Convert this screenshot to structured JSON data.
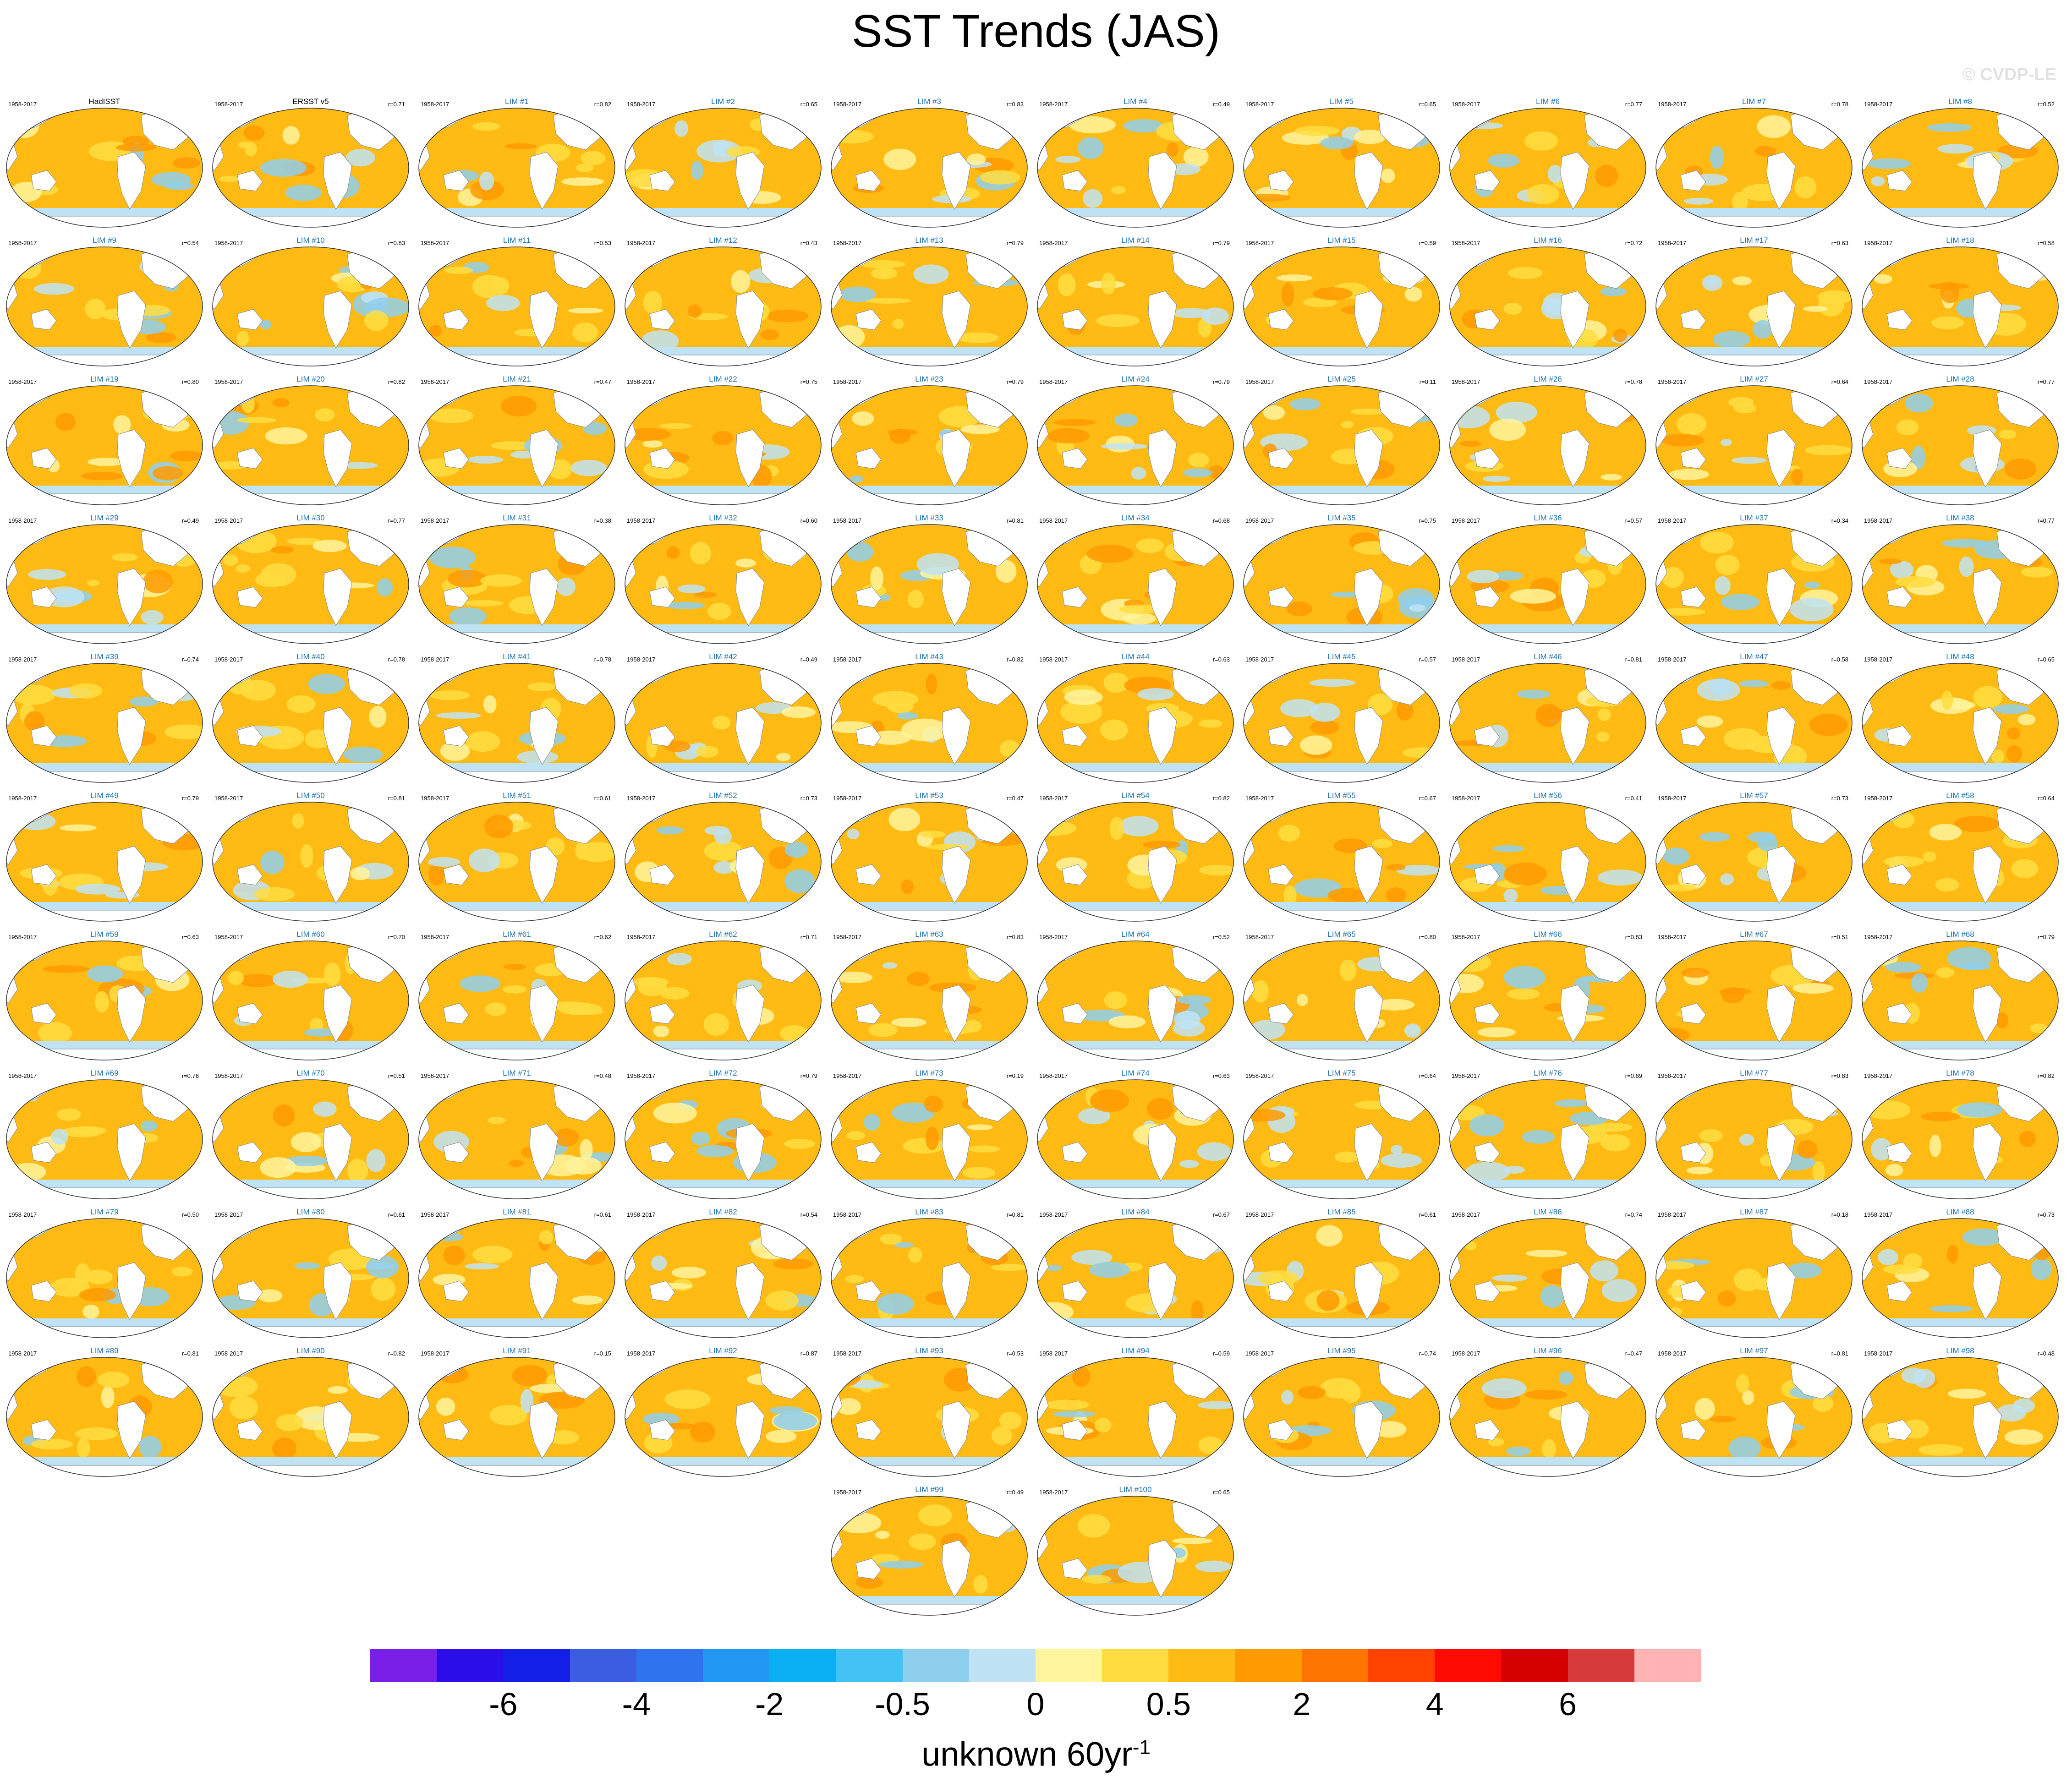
{
  "title": "SST Trends (JAS)",
  "watermark": "© CVDP-LE",
  "colorbar": {
    "colors": [
      "#7a1fe8",
      "#2a0de8",
      "#1420e8",
      "#3b5ee0",
      "#2f74ee",
      "#2196f3",
      "#0aaef2",
      "#45c2f5",
      "#8fcfee",
      "#bfe3f5",
      "#fff59d",
      "#ffdd40",
      "#ffbb14",
      "#ff9a00",
      "#ff7400",
      "#ff4200",
      "#ff0a00",
      "#d60000",
      "#d63a3a",
      "#ffb3b3"
    ],
    "tick_labels": [
      "-6",
      "-4",
      "-2",
      "-0.5",
      "0",
      "0.5",
      "2",
      "4",
      "6"
    ],
    "unit_main": "unknown 60yr",
    "unit_sup": "-1"
  },
  "chart_data": {
    "type": "map-panel-grid",
    "title": "SST Trends (JAS)",
    "period": "1958-2017",
    "panels": [
      {
        "name": "HadISST",
        "r": ""
      },
      {
        "name": "ERSST v5",
        "r": "r=0.71"
      },
      {
        "name": "LIM #1",
        "r": "r=0.82"
      },
      {
        "name": "LIM #2",
        "r": "r=0.65"
      },
      {
        "name": "LIM #3",
        "r": "r=0.83"
      },
      {
        "name": "LIM #4",
        "r": "r=0.49"
      },
      {
        "name": "LIM #5",
        "r": "r=0.65"
      },
      {
        "name": "LIM #6",
        "r": "r=0.77"
      },
      {
        "name": "LIM #7",
        "r": "r=0.78"
      },
      {
        "name": "LIM #8",
        "r": "r=0.52"
      },
      {
        "name": "LIM #9",
        "r": "r=0.54"
      },
      {
        "name": "LIM #10",
        "r": "r=0.83"
      },
      {
        "name": "LIM #11",
        "r": "r=0.53"
      },
      {
        "name": "LIM #12",
        "r": "r=0.43"
      },
      {
        "name": "LIM #13",
        "r": "r=0.79"
      },
      {
        "name": "LIM #14",
        "r": "r=0.79"
      },
      {
        "name": "LIM #15",
        "r": "r=0.59"
      },
      {
        "name": "LIM #16",
        "r": "r=0.72"
      },
      {
        "name": "LIM #17",
        "r": "r=0.63"
      },
      {
        "name": "LIM #18",
        "r": "r=0.58"
      },
      {
        "name": "LIM #19",
        "r": "r=0.80"
      },
      {
        "name": "LIM #20",
        "r": "r=0.82"
      },
      {
        "name": "LIM #21",
        "r": "r=0.47"
      },
      {
        "name": "LIM #22",
        "r": "r=0.75"
      },
      {
        "name": "LIM #23",
        "r": "r=0.79"
      },
      {
        "name": "LIM #24",
        "r": "r=0.79"
      },
      {
        "name": "LIM #25",
        "r": "r=0.11"
      },
      {
        "name": "LIM #26",
        "r": "r=0.78"
      },
      {
        "name": "LIM #27",
        "r": "r=0.64"
      },
      {
        "name": "LIM #28",
        "r": "r=0.77"
      },
      {
        "name": "LIM #29",
        "r": "r=0.49"
      },
      {
        "name": "LIM #30",
        "r": "r=0.77"
      },
      {
        "name": "LIM #31",
        "r": "r=0.38"
      },
      {
        "name": "LIM #32",
        "r": "r=0.60"
      },
      {
        "name": "LIM #33",
        "r": "r=0.81"
      },
      {
        "name": "LIM #34",
        "r": "r=0.68"
      },
      {
        "name": "LIM #35",
        "r": "r=0.75"
      },
      {
        "name": "LIM #36",
        "r": "r=0.57"
      },
      {
        "name": "LIM #37",
        "r": "r=0.34"
      },
      {
        "name": "LIM #38",
        "r": "r=0.77"
      },
      {
        "name": "LIM #39",
        "r": "r=0.74"
      },
      {
        "name": "LIM #40",
        "r": "r=0.78"
      },
      {
        "name": "LIM #41",
        "r": "r=0.78"
      },
      {
        "name": "LIM #42",
        "r": "r=0.49"
      },
      {
        "name": "LIM #43",
        "r": "r=0.82"
      },
      {
        "name": "LIM #44",
        "r": "r=0.63"
      },
      {
        "name": "LIM #45",
        "r": "r=0.57"
      },
      {
        "name": "LIM #46",
        "r": "r=0.81"
      },
      {
        "name": "LIM #47",
        "r": "r=0.58"
      },
      {
        "name": "LIM #48",
        "r": "r=0.65"
      },
      {
        "name": "LIM #49",
        "r": "r=0.79"
      },
      {
        "name": "LIM #50",
        "r": "r=0.81"
      },
      {
        "name": "LIM #51",
        "r": "r=0.61"
      },
      {
        "name": "LIM #52",
        "r": "r=0.73"
      },
      {
        "name": "LIM #53",
        "r": "r=0.47"
      },
      {
        "name": "LIM #54",
        "r": "r=0.82"
      },
      {
        "name": "LIM #55",
        "r": "r=0.67"
      },
      {
        "name": "LIM #56",
        "r": "r=0.41"
      },
      {
        "name": "LIM #57",
        "r": "r=0.73"
      },
      {
        "name": "LIM #58",
        "r": "r=0.64"
      },
      {
        "name": "LIM #59",
        "r": "r=0.63"
      },
      {
        "name": "LIM #60",
        "r": "r=0.70"
      },
      {
        "name": "LIM #61",
        "r": "r=0.62"
      },
      {
        "name": "LIM #62",
        "r": "r=0.71"
      },
      {
        "name": "LIM #63",
        "r": "r=0.83"
      },
      {
        "name": "LIM #64",
        "r": "r=0.52"
      },
      {
        "name": "LIM #65",
        "r": "r=0.80"
      },
      {
        "name": "LIM #66",
        "r": "r=0.83"
      },
      {
        "name": "LIM #67",
        "r": "r=0.51"
      },
      {
        "name": "LIM #68",
        "r": "r=0.79"
      },
      {
        "name": "LIM #69",
        "r": "r=0.76"
      },
      {
        "name": "LIM #70",
        "r": "r=0.51"
      },
      {
        "name": "LIM #71",
        "r": "r=0.48"
      },
      {
        "name": "LIM #72",
        "r": "r=0.79"
      },
      {
        "name": "LIM #73",
        "r": "r=0.19"
      },
      {
        "name": "LIM #74",
        "r": "r=0.63"
      },
      {
        "name": "LIM #75",
        "r": "r=0.64"
      },
      {
        "name": "LIM #76",
        "r": "r=0.69"
      },
      {
        "name": "LIM #77",
        "r": "r=0.83"
      },
      {
        "name": "LIM #78",
        "r": "r=0.82"
      },
      {
        "name": "LIM #79",
        "r": "r=0.50"
      },
      {
        "name": "LIM #80",
        "r": "r=0.61"
      },
      {
        "name": "LIM #81",
        "r": "r=0.61"
      },
      {
        "name": "LIM #82",
        "r": "r=0.54"
      },
      {
        "name": "LIM #83",
        "r": "r=0.81"
      },
      {
        "name": "LIM #84",
        "r": "r=0.67"
      },
      {
        "name": "LIM #85",
        "r": "r=0.61"
      },
      {
        "name": "LIM #86",
        "r": "r=0.74"
      },
      {
        "name": "LIM #87",
        "r": "r=0.18"
      },
      {
        "name": "LIM #88",
        "r": "r=0.73"
      },
      {
        "name": "LIM #89",
        "r": "r=0.81"
      },
      {
        "name": "LIM #90",
        "r": "r=0.82"
      },
      {
        "name": "LIM #91",
        "r": "r=0.15"
      },
      {
        "name": "LIM #92",
        "r": "r=0.87"
      },
      {
        "name": "LIM #93",
        "r": "r=0.53"
      },
      {
        "name": "LIM #94",
        "r": "r=0.59"
      },
      {
        "name": "LIM #95",
        "r": "r=0.74"
      },
      {
        "name": "LIM #96",
        "r": "r=0.47"
      },
      {
        "name": "LIM #97",
        "r": "r=0.81"
      },
      {
        "name": "LIM #98",
        "r": "r=0.48"
      },
      {
        "name": "LIM #99",
        "r": "r=0.49"
      },
      {
        "name": "LIM #100",
        "r": "r=0.65"
      }
    ]
  }
}
